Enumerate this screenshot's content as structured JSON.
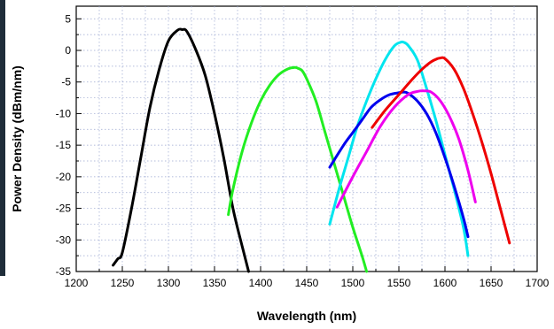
{
  "chart_data": {
    "type": "line",
    "title": "",
    "xlabel": "Wavelength (nm)",
    "ylabel": "Power Density (dBm/nm)",
    "xlim": [
      1200,
      1700
    ],
    "ylim": [
      -35,
      7
    ],
    "xticks": [
      "1200",
      "1250",
      "1300",
      "1350",
      "1400",
      "1450",
      "1500",
      "1550",
      "1600",
      "1650",
      "1700"
    ],
    "yticks": [
      "5",
      "0",
      "-5",
      "-10",
      "-15",
      "-20",
      "-25",
      "-30",
      "-35"
    ],
    "grid": true,
    "legend": "none",
    "series": [
      {
        "color": "#000000",
        "x": [
          1240,
          1245,
          1250,
          1260,
          1270,
          1280,
          1290,
          1300,
          1310,
          1315,
          1320,
          1330,
          1340,
          1350,
          1360,
          1370,
          1380,
          1387
        ],
        "y": [
          -34,
          -33,
          -32,
          -25,
          -17,
          -9,
          -3,
          1.5,
          3.2,
          3.3,
          3,
          0,
          -4,
          -10,
          -17,
          -25,
          -31,
          -35
        ]
      },
      {
        "color": "#22ee22",
        "x": [
          1365,
          1370,
          1380,
          1390,
          1400,
          1410,
          1420,
          1430,
          1437,
          1440,
          1445,
          1450,
          1460,
          1470,
          1480,
          1490,
          1500,
          1510,
          1515
        ],
        "y": [
          -26,
          -22,
          -16,
          -11.5,
          -8,
          -5.5,
          -3.8,
          -2.9,
          -2.7,
          -2.8,
          -3.2,
          -4.5,
          -8,
          -13,
          -18,
          -23,
          -28,
          -32.5,
          -35
        ]
      },
      {
        "color": "#00e5ee",
        "x": [
          1475,
          1485,
          1495,
          1505,
          1515,
          1525,
          1535,
          1545,
          1552,
          1555,
          1560,
          1570,
          1580,
          1590,
          1600,
          1610,
          1620,
          1625
        ],
        "y": [
          -27.5,
          -22,
          -17,
          -12,
          -8,
          -4.5,
          -1.5,
          0.7,
          1.3,
          1.3,
          0.8,
          -1.5,
          -6,
          -11,
          -16.5,
          -22,
          -28,
          -32.5
        ]
      },
      {
        "color": "#0000ee",
        "x": [
          1475,
          1490,
          1500,
          1510,
          1520,
          1530,
          1540,
          1550,
          1555,
          1560,
          1570,
          1580,
          1590,
          1600,
          1610,
          1620,
          1625
        ],
        "y": [
          -18.5,
          -15,
          -13,
          -11,
          -9,
          -7.8,
          -7,
          -6.7,
          -6.6,
          -6.8,
          -8,
          -10,
          -13,
          -17,
          -21.5,
          -26.5,
          -29.5
        ]
      },
      {
        "color": "#ee00ee",
        "x": [
          1483,
          1500,
          1515,
          1530,
          1545,
          1560,
          1570,
          1577,
          1585,
          1595,
          1605,
          1615,
          1625,
          1633
        ],
        "y": [
          -24.8,
          -20,
          -16,
          -12,
          -9,
          -7,
          -6.5,
          -6.4,
          -6.6,
          -8,
          -10.5,
          -14,
          -19,
          -24
        ]
      },
      {
        "color": "#ee0000",
        "x": [
          1521,
          1535,
          1550,
          1565,
          1575,
          1585,
          1592,
          1595,
          1600,
          1610,
          1620,
          1630,
          1640,
          1650,
          1660,
          1670
        ],
        "y": [
          -12.2,
          -9.5,
          -7,
          -4.5,
          -3,
          -1.8,
          -1.3,
          -1.2,
          -1.3,
          -3,
          -6,
          -10,
          -14.5,
          -19.5,
          -25,
          -30.5
        ]
      }
    ]
  }
}
